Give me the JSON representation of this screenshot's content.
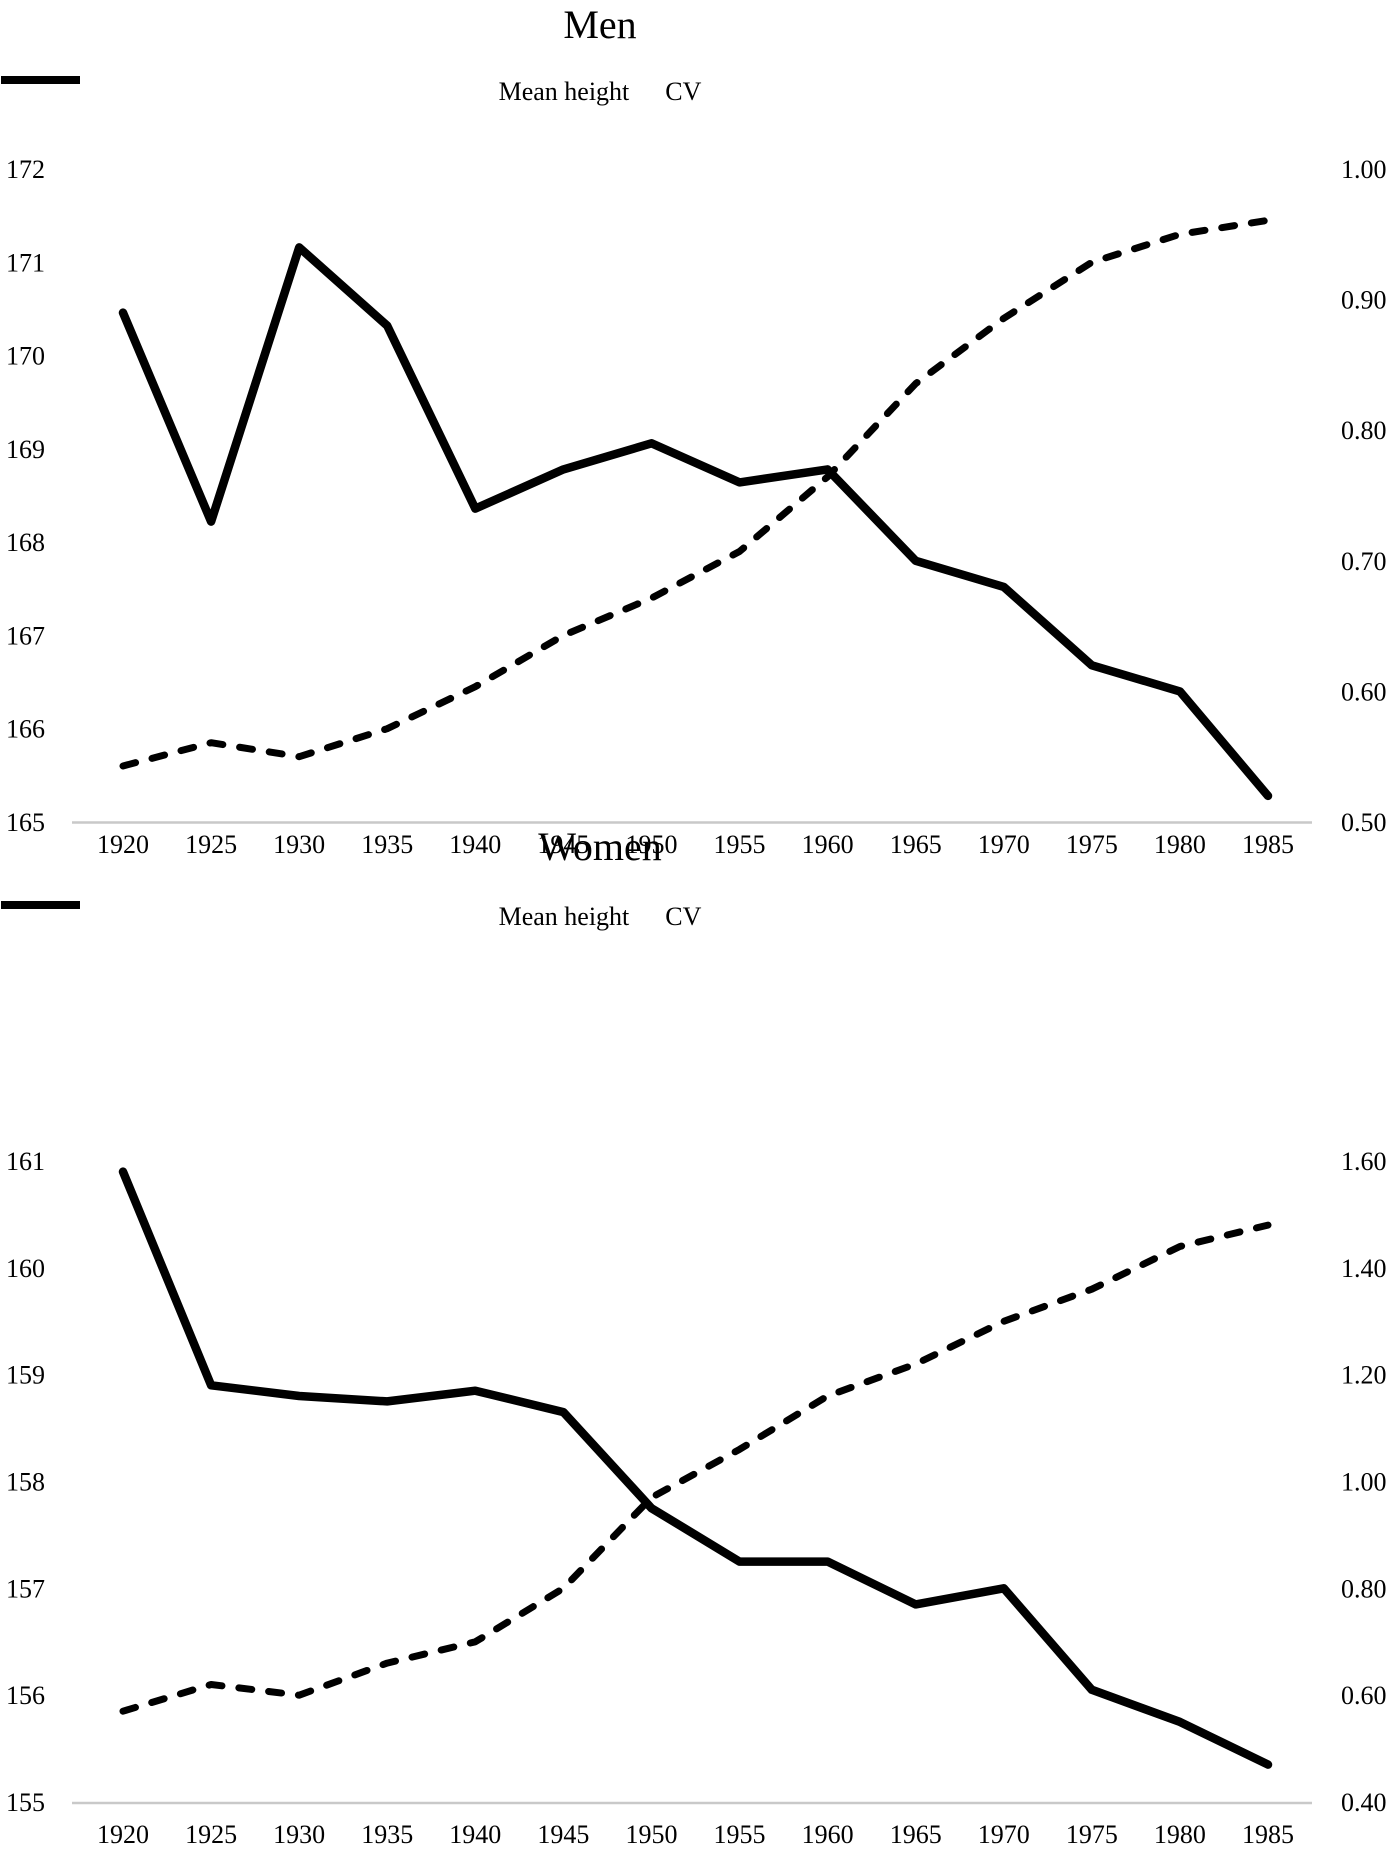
{
  "page_background": "#ffffff",
  "colors": {
    "series_line": "#000000",
    "axis_baseline": "#c9c9c9",
    "tick_text": "#000000"
  },
  "chart_data": [
    {
      "type": "line",
      "title": "Men",
      "legend_position": "top",
      "grid": false,
      "x": [
        1920,
        1925,
        1930,
        1935,
        1940,
        1945,
        1950,
        1955,
        1960,
        1965,
        1970,
        1975,
        1980,
        1985
      ],
      "x_tick_labels": [
        "1920",
        "1925",
        "1930",
        "1935",
        "1940",
        "1945",
        "1950",
        "1955",
        "1960",
        "1965",
        "1970",
        "1975",
        "1980",
        "1985"
      ],
      "series": [
        {
          "name": "Mean height",
          "axis": "left",
          "line_style": "dashed",
          "color": "#000000",
          "values": [
            165.6,
            165.85,
            165.7,
            166.0,
            166.45,
            167.0,
            167.4,
            167.9,
            168.7,
            169.7,
            170.4,
            171.0,
            171.3,
            171.45
          ]
        },
        {
          "name": "CV",
          "axis": "right",
          "line_style": "solid",
          "color": "#000000",
          "values": [
            0.89,
            0.73,
            0.94,
            0.88,
            0.74,
            0.77,
            0.79,
            0.76,
            0.77,
            0.7,
            0.68,
            0.62,
            0.6,
            0.52
          ]
        }
      ],
      "left_axis": {
        "min": 165,
        "max": 172,
        "tick_labels": [
          "165",
          "166",
          "167",
          "168",
          "169",
          "170",
          "171",
          "172"
        ]
      },
      "right_axis": {
        "min": 0.5,
        "max": 1.0,
        "tick_labels": [
          "0.50",
          "0.60",
          "0.70",
          "0.80",
          "0.90",
          "1.00"
        ]
      }
    },
    {
      "type": "line",
      "title": "Women",
      "legend_position": "top",
      "grid": false,
      "x": [
        1920,
        1925,
        1930,
        1935,
        1940,
        1945,
        1950,
        1955,
        1960,
        1965,
        1970,
        1975,
        1980,
        1985
      ],
      "x_tick_labels": [
        "1920",
        "1925",
        "1930",
        "1935",
        "1940",
        "1945",
        "1950",
        "1955",
        "1960",
        "1965",
        "1970",
        "1975",
        "1980",
        "1985"
      ],
      "series": [
        {
          "name": "Mean height",
          "axis": "left",
          "line_style": "dashed",
          "color": "#000000",
          "values": [
            155.85,
            156.1,
            156.0,
            156.3,
            156.5,
            157.0,
            157.85,
            158.3,
            158.8,
            159.1,
            159.5,
            159.8,
            160.2,
            160.4
          ]
        },
        {
          "name": "CV",
          "axis": "right",
          "line_style": "solid",
          "color": "#000000",
          "values": [
            1.58,
            1.18,
            1.16,
            1.15,
            1.17,
            1.13,
            0.95,
            0.85,
            0.85,
            0.77,
            0.8,
            0.61,
            0.55,
            0.47
          ]
        }
      ],
      "left_axis": {
        "min": 155,
        "max": 161,
        "tick_labels": [
          "155",
          "156",
          "157",
          "158",
          "159",
          "160",
          "161"
        ]
      },
      "right_axis": {
        "min": 0.4,
        "max": 1.6,
        "tick_labels": [
          "0.40",
          "0.60",
          "0.80",
          "1.00",
          "1.20",
          "1.40",
          "1.60"
        ]
      }
    }
  ]
}
